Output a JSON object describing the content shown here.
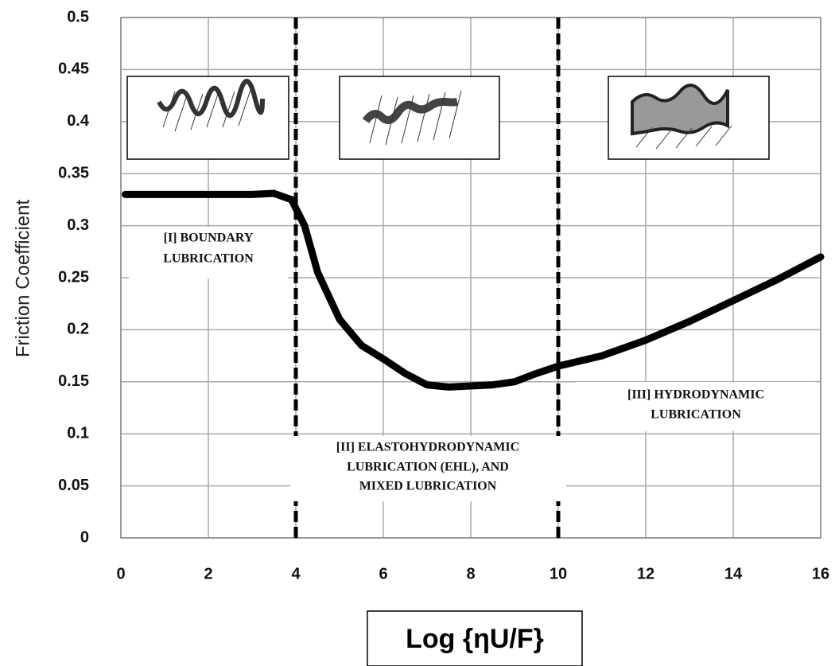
{
  "chart_data": {
    "type": "line",
    "y_label": "Friction Coefficient",
    "x_label": "Log {ηU/F}",
    "x": [
      0.1,
      1,
      2,
      3,
      3.5,
      3.9,
      4.2,
      4.5,
      5,
      5.5,
      6,
      6.5,
      7,
      7.5,
      8,
      8.5,
      9,
      9.5,
      10,
      11,
      12,
      13,
      14,
      15,
      16
    ],
    "series": [
      {
        "color": "#000000",
        "values": [
          0.33,
          0.33,
          0.33,
          0.33,
          0.331,
          0.325,
          0.3,
          0.255,
          0.21,
          0.185,
          0.172,
          0.158,
          0.147,
          0.145,
          0.146,
          0.147,
          0.15,
          0.158,
          0.165,
          0.175,
          0.19,
          0.208,
          0.228,
          0.248,
          0.27
        ]
      }
    ],
    "xlim": [
      0,
      16
    ],
    "xticks": [
      0,
      2,
      4,
      6,
      8,
      10,
      12,
      14,
      16
    ],
    "ylim": [
      0,
      0.5
    ],
    "yticks": [
      0,
      0.05,
      0.1,
      0.15,
      0.2,
      0.25,
      0.3,
      0.35,
      0.4,
      0.45,
      0.5
    ],
    "grid": true,
    "dividers": [
      4,
      10
    ],
    "annotations": [
      {
        "lines": [
          "[I] BOUNDARY",
          "LUBRICATION"
        ]
      },
      {
        "lines": [
          "[II] ELASTOHYDRODYNAMIC",
          "LUBRICATION (EHL), AND",
          "MIXED LUBRICATION"
        ]
      },
      {
        "lines": [
          "[III] HYDRODYNAMIC",
          "LUBRICATION"
        ]
      }
    ]
  }
}
